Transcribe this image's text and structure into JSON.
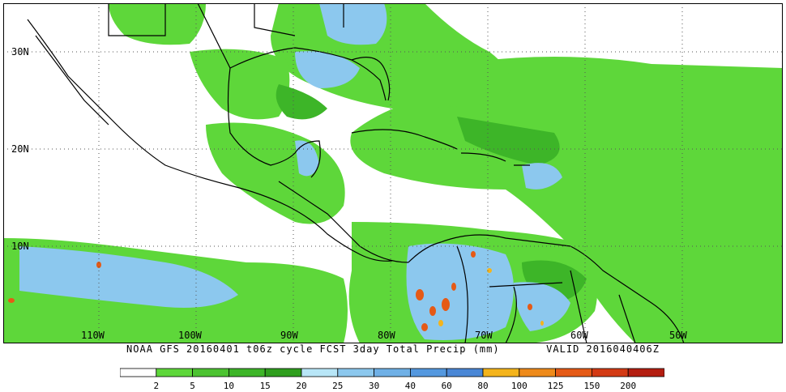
{
  "map": {
    "caption": "NOAA GFS 20160401 t06z cycle FCST 3day Total Precip (mm)       VALID 2016040406Z",
    "lat_labels": [
      "30N",
      "20N",
      "10N"
    ],
    "lon_labels": [
      "110W",
      "100W",
      "90W",
      "80W",
      "70W",
      "60W",
      "50W"
    ],
    "colors": {
      "land_outline": "#000000",
      "grid": "#555555",
      "background": "#ffffff"
    }
  },
  "legend": {
    "colors": [
      "#ffffff",
      "#5ed73a",
      "#4cc331",
      "#3db528",
      "#2f9e1e",
      "#b8e6f7",
      "#8cc8ee",
      "#6fb0e6",
      "#5498df",
      "#4a87d6",
      "#f4b41c",
      "#ee8a1a",
      "#e55a16",
      "#d33a14",
      "#b41e10"
    ],
    "labels": [
      "2",
      "5",
      "10",
      "15",
      "20",
      "25",
      "30",
      "40",
      "60",
      "80",
      "100",
      "125",
      "150",
      "200"
    ]
  }
}
